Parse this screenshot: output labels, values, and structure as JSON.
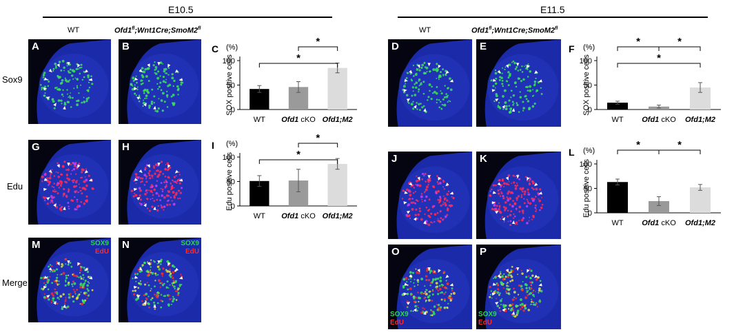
{
  "headers": {
    "left": "E10.5",
    "right": "E11.5"
  },
  "genotypes": {
    "wt": "WT",
    "mutant_main": "Ofd1",
    "mutant_sup": "fl",
    "mutant_mid": ";Wnt1Cre;SmoM2",
    "mutant_sup2": "fl"
  },
  "rows": [
    "Sox9",
    "Edu",
    "Merge"
  ],
  "panels": {
    "A": "A",
    "B": "B",
    "D": "D",
    "E": "E",
    "G": "G",
    "H": "H",
    "J": "J",
    "K": "K",
    "M": "M",
    "N": "N",
    "O": "O",
    "P": "P"
  },
  "stains": {
    "sox9": "SOX9",
    "edu": "EdU"
  },
  "colors": {
    "green": "#2bd84a",
    "red": "#ff2a2a",
    "blue": "#1a2bb0"
  },
  "chart_data": [
    {
      "id": "C",
      "type": "bar",
      "ylabel": "SOX positive cells",
      "unit": "(%)",
      "categories": [
        "WT",
        "Ofd1 cKO",
        "Ofd1;M2"
      ],
      "values": [
        42,
        46,
        85
      ],
      "errors": [
        7,
        11,
        10
      ],
      "colors": [
        "#000000",
        "#9a9a9a",
        "#dcdcdc"
      ],
      "yticks": [
        0,
        50,
        100
      ],
      "ylim": [
        0,
        100
      ],
      "sig": [
        {
          "from": 0,
          "to": 2,
          "label": "*"
        },
        {
          "from": 1,
          "to": 2,
          "label": "*"
        }
      ]
    },
    {
      "id": "I",
      "type": "bar",
      "ylabel": "Edu positive cells",
      "unit": "(%)",
      "categories": [
        "WT",
        "Ofd1 cKO",
        "Ofd1;M2"
      ],
      "values": [
        51,
        52,
        86
      ],
      "errors": [
        11,
        23,
        11
      ],
      "colors": [
        "#000000",
        "#9a9a9a",
        "#dcdcdc"
      ],
      "yticks": [
        0,
        50,
        100
      ],
      "ylim": [
        0,
        100
      ],
      "sig": [
        {
          "from": 0,
          "to": 2,
          "label": "*"
        },
        {
          "from": 1,
          "to": 2,
          "label": "*"
        }
      ]
    },
    {
      "id": "F",
      "type": "bar",
      "ylabel": "SOX positive cells",
      "unit": "(%)",
      "categories": [
        "WT",
        "Ofd1 cKO",
        "Ofd1;M2"
      ],
      "values": [
        14,
        6,
        45
      ],
      "errors": [
        3,
        3,
        10
      ],
      "colors": [
        "#000000",
        "#9a9a9a",
        "#dcdcdc"
      ],
      "yticks": [
        0,
        50,
        100
      ],
      "ylim": [
        0,
        100
      ],
      "sig": [
        {
          "from": 0,
          "to": 1,
          "label": "*"
        },
        {
          "from": 1,
          "to": 2,
          "label": "*"
        },
        {
          "from": 0,
          "to": 2,
          "label": "*"
        }
      ]
    },
    {
      "id": "L",
      "type": "bar",
      "ylabel": "Edu positive cells",
      "unit": "(%)",
      "categories": [
        "WT",
        "Ofd1 cKO",
        "Ofd1;M2"
      ],
      "values": [
        63,
        24,
        52
      ],
      "errors": [
        6,
        9,
        6
      ],
      "colors": [
        "#000000",
        "#9a9a9a",
        "#dcdcdc"
      ],
      "yticks": [
        0,
        50,
        100
      ],
      "ylim": [
        0,
        100
      ],
      "sig": [
        {
          "from": 0,
          "to": 1,
          "label": "*"
        },
        {
          "from": 1,
          "to": 2,
          "label": "*"
        }
      ]
    }
  ]
}
